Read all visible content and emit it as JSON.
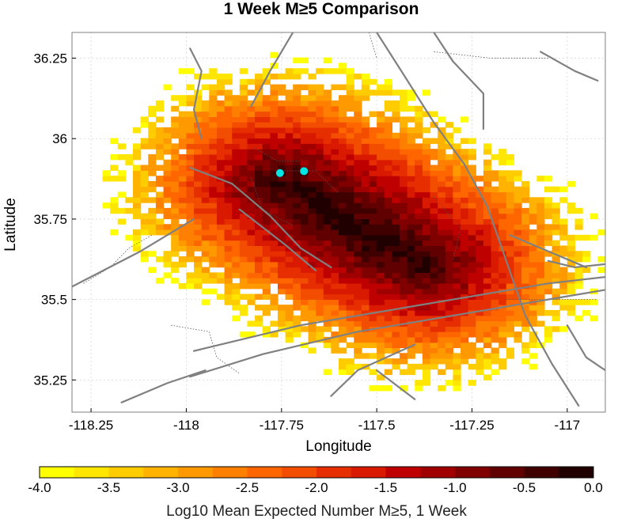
{
  "title": "1 Week M≥5 Comparison",
  "map": {
    "xlabel": "Longitude",
    "ylabel": "Latitude",
    "xlim": [
      -118.3,
      -116.9
    ],
    "ylim": [
      35.15,
      36.33
    ],
    "xticks": [
      -118.25,
      -118,
      -117.75,
      -117.5,
      -117.25,
      -117
    ],
    "xtick_labels": [
      "-118.25",
      "-118",
      "-117.75",
      "-117.5",
      "-117.25",
      "-117"
    ],
    "yticks": [
      35.25,
      35.5,
      35.75,
      36,
      36.25
    ],
    "ytick_labels": [
      "35.25",
      "35.5",
      "35.75",
      "36",
      "36.25"
    ],
    "grid": true,
    "fault_color": "#808080",
    "marker_color": "#00e5e5",
    "markers": [
      {
        "name": "epicenter-1",
        "lon": -117.754,
        "lat": 35.893
      },
      {
        "name": "epicenter-2",
        "lon": -117.691,
        "lat": 35.899
      }
    ],
    "forecast_field": {
      "description_of_pattern": "cluster elongated NW-SE",
      "ridge_start": [
        -117.76,
        35.9
      ],
      "ridge_end": [
        -117.36,
        35.57
      ],
      "peak_value": -0.1,
      "min_value": -4.0
    },
    "faults": [
      [
        [
          -118.3,
          35.54
        ],
        [
          -118.12,
          35.65
        ],
        [
          -117.98,
          35.75
        ]
      ],
      [
        [
          -117.98,
          35.34
        ],
        [
          -117.7,
          35.42
        ],
        [
          -117.4,
          35.48
        ],
        [
          -117.05,
          35.55
        ],
        [
          -116.9,
          35.57
        ]
      ],
      [
        [
          -117.99,
          35.26
        ],
        [
          -117.8,
          35.33
        ],
        [
          -117.55,
          35.4
        ],
        [
          -117.35,
          35.44
        ],
        [
          -117.05,
          35.5
        ],
        [
          -116.9,
          35.53
        ]
      ],
      [
        [
          -117.99,
          35.91
        ],
        [
          -117.88,
          35.86
        ],
        [
          -117.78,
          35.76
        ],
        [
          -117.7,
          35.66
        ],
        [
          -117.62,
          35.6
        ]
      ],
      [
        [
          -117.86,
          35.78
        ],
        [
          -117.74,
          35.67
        ],
        [
          -117.66,
          35.59
        ]
      ],
      [
        [
          -117.99,
          36.28
        ],
        [
          -117.96,
          36.21
        ],
        [
          -117.98,
          36.09
        ],
        [
          -117.96,
          36.0
        ]
      ],
      [
        [
          -117.72,
          36.33
        ],
        [
          -117.78,
          36.21
        ],
        [
          -117.83,
          36.1
        ]
      ],
      [
        [
          -117.5,
          36.33
        ],
        [
          -117.43,
          36.2
        ],
        [
          -117.35,
          36.05
        ],
        [
          -117.27,
          35.92
        ],
        [
          -117.21,
          35.79
        ],
        [
          -117.16,
          35.62
        ],
        [
          -117.11,
          35.45
        ],
        [
          -117.04,
          35.3
        ],
        [
          -116.97,
          35.17
        ]
      ],
      [
        [
          -117.35,
          36.33
        ],
        [
          -117.3,
          36.24
        ],
        [
          -117.22,
          36.14
        ],
        [
          -117.22,
          36.03
        ]
      ],
      [
        [
          -117.07,
          36.27
        ],
        [
          -116.98,
          36.21
        ],
        [
          -116.92,
          36.18
        ]
      ],
      [
        [
          -117.15,
          35.7
        ],
        [
          -117.05,
          35.65
        ],
        [
          -116.95,
          35.6
        ]
      ],
      [
        [
          -118.17,
          35.18
        ],
        [
          -118.05,
          35.24
        ],
        [
          -117.95,
          35.28
        ]
      ],
      [
        [
          -117.62,
          35.2
        ],
        [
          -117.55,
          35.28
        ],
        [
          -117.4,
          35.36
        ]
      ],
      [
        [
          -117.4,
          35.19
        ],
        [
          -117.5,
          35.28
        ]
      ],
      [
        [
          -117.0,
          35.42
        ],
        [
          -116.95,
          35.32
        ],
        [
          -116.9,
          35.28
        ]
      ],
      [
        [
          -117.05,
          35.62
        ],
        [
          -116.98,
          35.6
        ],
        [
          -116.9,
          35.61
        ]
      ]
    ],
    "dotted_lines": [
      [
        [
          -118.27,
          35.55
        ],
        [
          -118.2,
          35.6
        ],
        [
          -118.15,
          35.66
        ],
        [
          -118.09,
          35.7
        ]
      ],
      [
        [
          -118.04,
          35.42
        ],
        [
          -117.94,
          35.4
        ],
        [
          -117.92,
          35.32
        ],
        [
          -117.86,
          35.27
        ]
      ],
      [
        [
          -117.82,
          35.97
        ],
        [
          -117.76,
          35.93
        ],
        [
          -117.7,
          35.93
        ]
      ],
      [
        [
          -117.83,
          35.88
        ],
        [
          -117.8,
          35.78
        ],
        [
          -117.72,
          35.73
        ]
      ],
      [
        [
          -117.75,
          35.9
        ],
        [
          -117.66,
          35.9
        ],
        [
          -117.6,
          35.83
        ]
      ],
      [
        [
          -117.52,
          36.33
        ],
        [
          -117.5,
          36.25
        ]
      ],
      [
        [
          -117.35,
          36.27
        ],
        [
          -117.2,
          36.25
        ],
        [
          -117.05,
          36.25
        ]
      ],
      [
        [
          -117.35,
          35.82
        ],
        [
          -117.28,
          35.72
        ],
        [
          -117.3,
          35.62
        ]
      ],
      [
        [
          -117.16,
          35.5
        ],
        [
          -117.04,
          35.5
        ],
        [
          -116.92,
          35.5
        ]
      ]
    ]
  },
  "colorbar": {
    "label": "Log10 Mean Expected Number M≥5, 1 Week",
    "vmin": -4.0,
    "vmax": 0.0,
    "ticks": [
      -4.0,
      -3.5,
      -3.0,
      -2.5,
      -2.0,
      -1.5,
      -1.0,
      -0.5,
      0.0
    ],
    "tick_labels": [
      "-4.0",
      "-3.5",
      "-3.0",
      "-2.5",
      "-2.0",
      "-1.5",
      "-1.0",
      "-0.5",
      "0.0"
    ],
    "colors": [
      "#ffff00",
      "#ffe600",
      "#ffcc00",
      "#ffb300",
      "#ff9900",
      "#ff8000",
      "#ff6600",
      "#f24d00",
      "#e62e00",
      "#d91a00",
      "#bf0000",
      "#a00000",
      "#800000",
      "#600000",
      "#400000",
      "#200000"
    ]
  }
}
